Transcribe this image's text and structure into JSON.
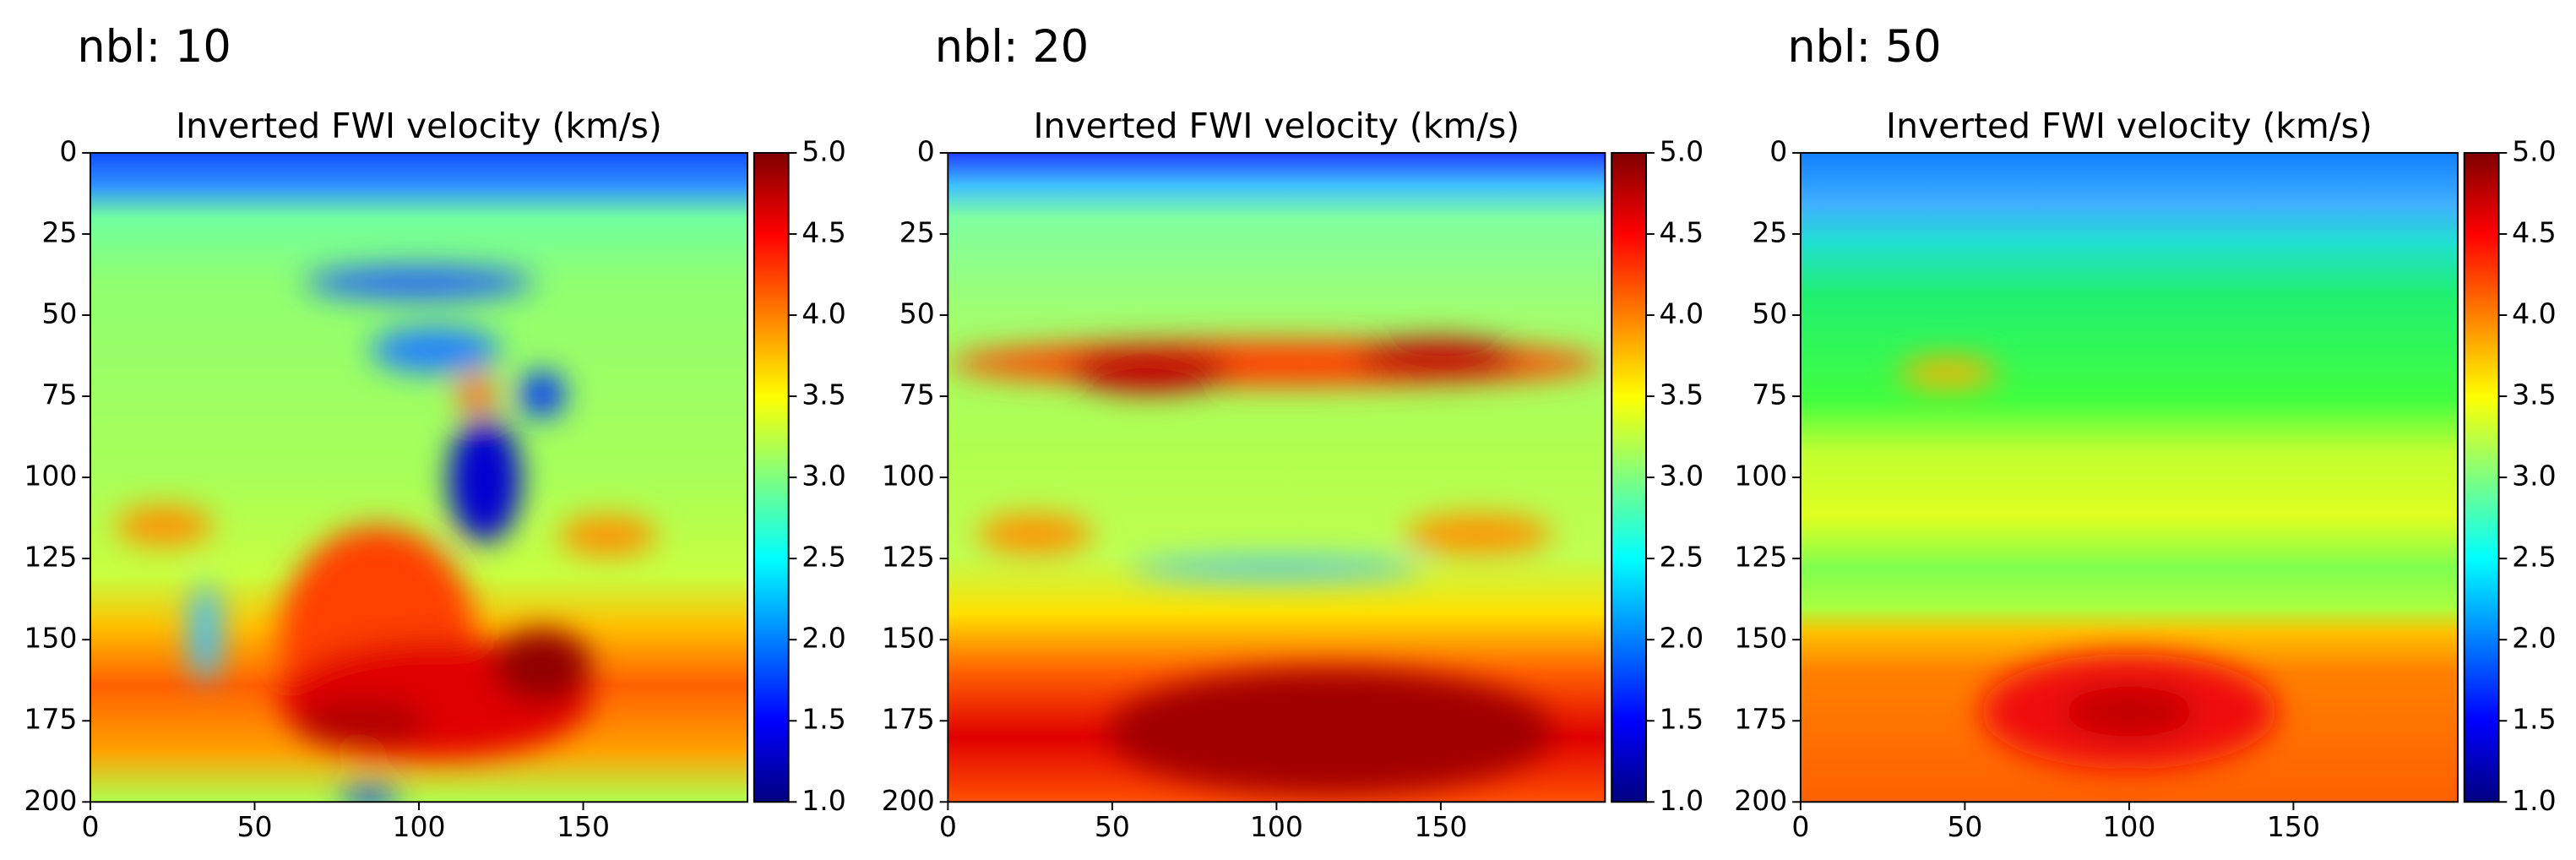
{
  "chart_data": [
    {
      "type": "heatmap",
      "label": "nbl: 10",
      "title": "Inverted FWI velocity (km/s)",
      "xlim": [
        0,
        200
      ],
      "xticks": [
        0,
        50,
        100,
        150
      ],
      "ylim": [
        200,
        0
      ],
      "yticks": [
        0,
        25,
        50,
        75,
        100,
        125,
        150,
        175,
        200
      ],
      "colorbar": {
        "cmap": "jet",
        "lim": [
          1,
          5
        ],
        "ticks": [
          {
            "value": 1,
            "label": "1.0"
          },
          {
            "value": 1.5,
            "label": "1.5"
          },
          {
            "value": 2,
            "label": "2.0"
          },
          {
            "value": 2.5,
            "label": "2.5"
          },
          {
            "value": 3,
            "label": "3.0"
          },
          {
            "value": 3.5,
            "label": "3.5"
          },
          {
            "value": 4,
            "label": "4.0"
          },
          {
            "value": 4.5,
            "label": "4.5"
          },
          {
            "value": 5,
            "label": "5.0"
          }
        ]
      }
    },
    {
      "type": "heatmap",
      "label": "nbl: 20",
      "title": "Inverted FWI velocity (km/s)",
      "xlim": [
        0,
        200
      ],
      "xticks": [
        0,
        50,
        100,
        150
      ],
      "ylim": [
        200,
        0
      ],
      "yticks": [
        0,
        25,
        50,
        75,
        100,
        125,
        150,
        175,
        200
      ],
      "colorbar": {
        "cmap": "jet",
        "lim": [
          1,
          5
        ],
        "ticks": [
          {
            "value": 1,
            "label": "1.0"
          },
          {
            "value": 1.5,
            "label": "1.5"
          },
          {
            "value": 2,
            "label": "2.0"
          },
          {
            "value": 2.5,
            "label": "2.5"
          },
          {
            "value": 3,
            "label": "3.0"
          },
          {
            "value": 3.5,
            "label": "3.5"
          },
          {
            "value": 4,
            "label": "4.0"
          },
          {
            "value": 4.5,
            "label": "4.5"
          },
          {
            "value": 5,
            "label": "5.0"
          }
        ]
      }
    },
    {
      "type": "heatmap",
      "label": "nbl: 50",
      "title": "Inverted FWI velocity (km/s)",
      "xlim": [
        0,
        200
      ],
      "xticks": [
        0,
        50,
        100,
        150
      ],
      "ylim": [
        200,
        0
      ],
      "yticks": [
        0,
        25,
        50,
        75,
        100,
        125,
        150,
        175,
        200
      ],
      "colorbar": {
        "cmap": "jet",
        "lim": [
          1,
          5
        ],
        "ticks": [
          {
            "value": 1,
            "label": "1.0"
          },
          {
            "value": 1.5,
            "label": "1.5"
          },
          {
            "value": 2,
            "label": "2.0"
          },
          {
            "value": 2.5,
            "label": "2.5"
          },
          {
            "value": 3,
            "label": "3.0"
          },
          {
            "value": 3.5,
            "label": "3.5"
          },
          {
            "value": 4,
            "label": "4.0"
          },
          {
            "value": 4.5,
            "label": "4.5"
          },
          {
            "value": 5,
            "label": "5.0"
          }
        ]
      }
    }
  ]
}
